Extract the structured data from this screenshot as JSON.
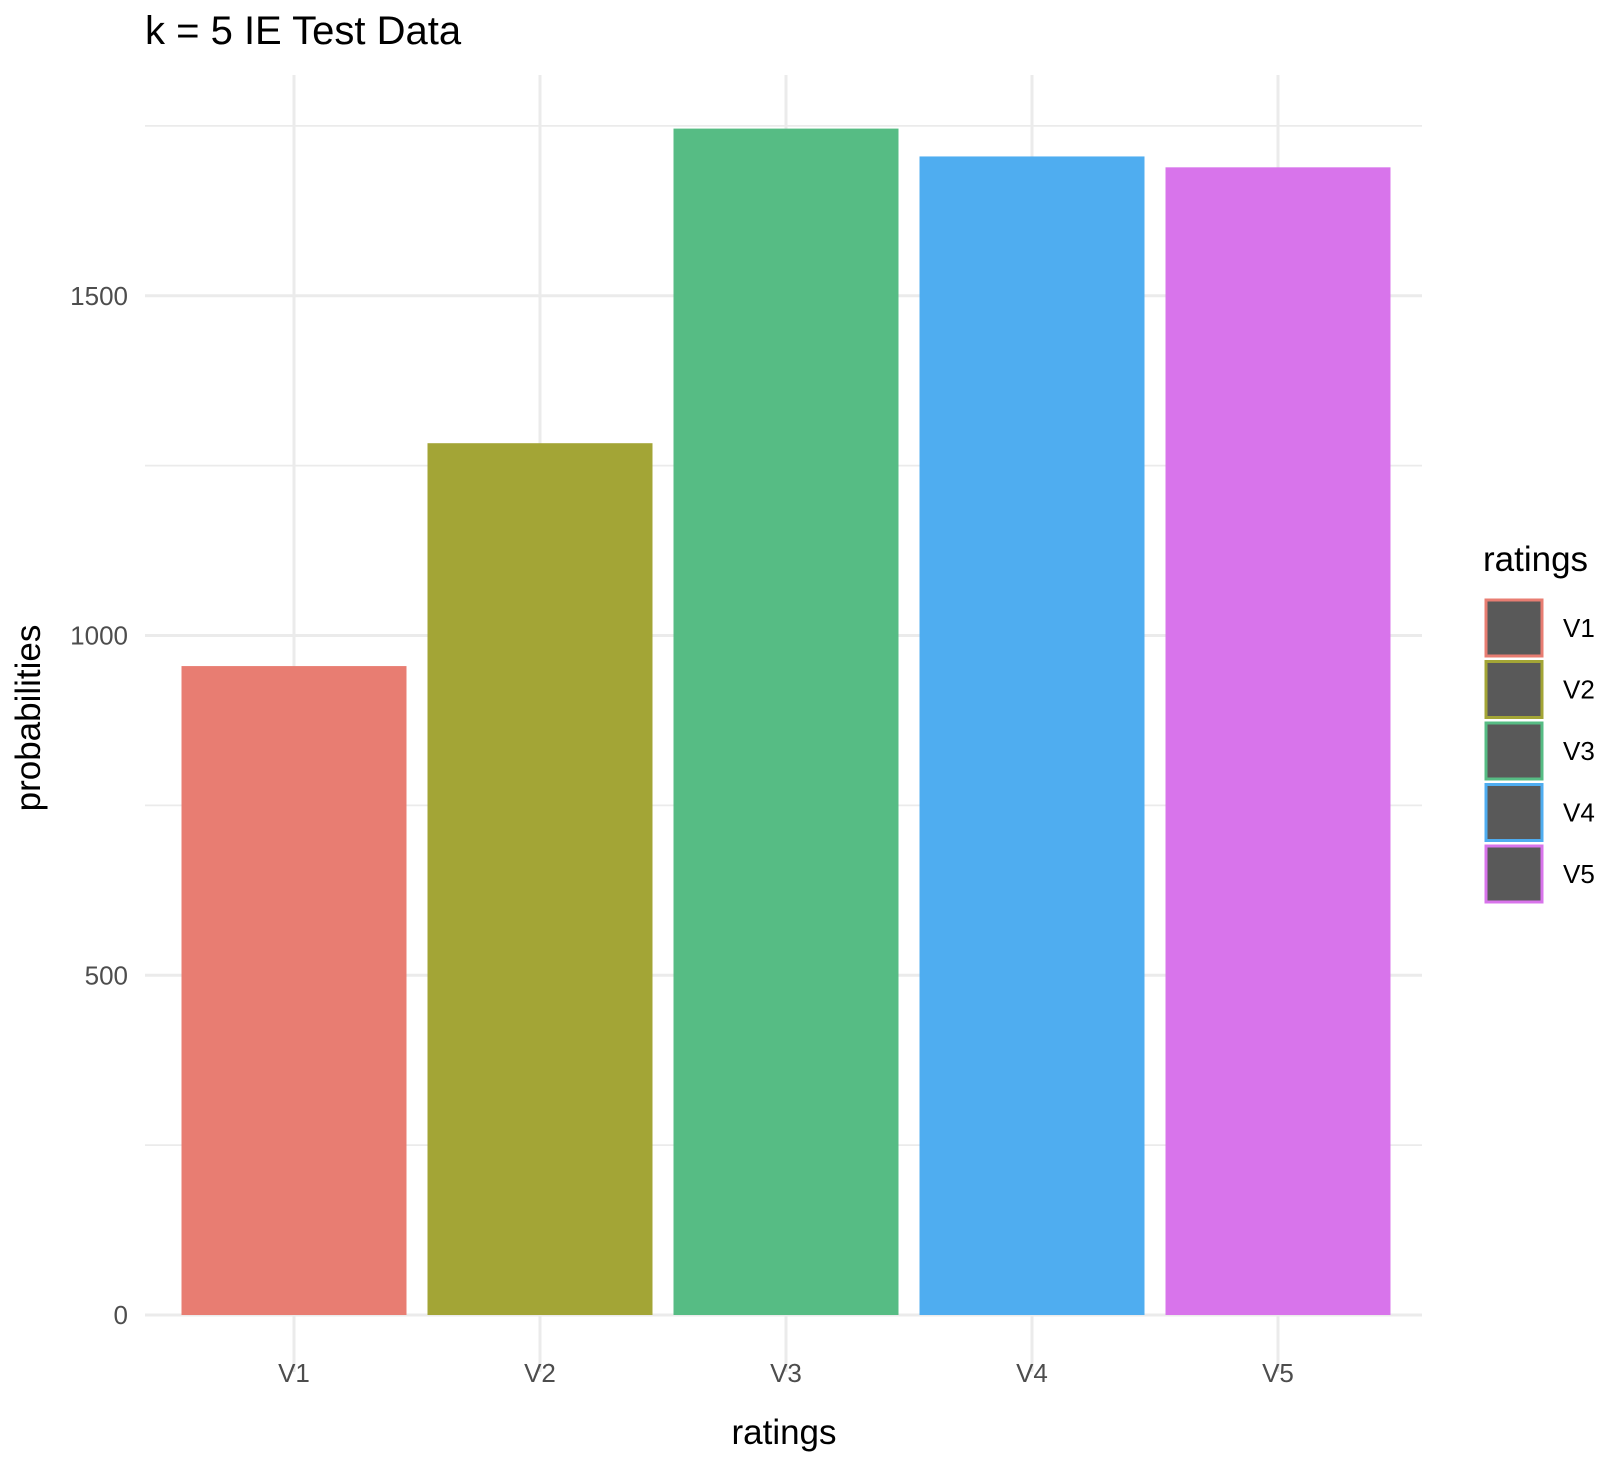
{
  "chart_data": {
    "type": "bar",
    "title": "k = 5 IE Test Data",
    "xlabel": "ratings",
    "ylabel": "probabilities",
    "categories": [
      "V1",
      "V2",
      "V3",
      "V4",
      "V5"
    ],
    "values": [
      955,
      1283,
      1746,
      1705,
      1689
    ],
    "colors": [
      "#E87D72",
      "#A3A536",
      "#56BC84",
      "#4FADF0",
      "#D874EB"
    ],
    "ylim": [
      0,
      1750
    ],
    "yticks": [
      0,
      500,
      1000,
      1500
    ],
    "yticks_minor": [
      250,
      750,
      1250,
      1750
    ],
    "grid": true,
    "legend": {
      "title": "ratings",
      "position": "right",
      "entries": [
        "V1",
        "V2",
        "V3",
        "V4",
        "V5"
      ],
      "fill": "#595959"
    }
  }
}
